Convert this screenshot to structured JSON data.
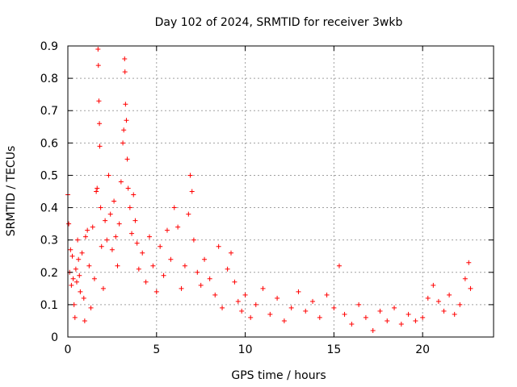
{
  "chart_data": {
    "type": "scatter",
    "title": "Day 102 of 2024, SRMTID for receiver 3wkb",
    "xlabel": "GPS time / hours",
    "ylabel": "SRMTID / TECUs",
    "xlim": [
      0,
      24
    ],
    "ylim": [
      0,
      0.9
    ],
    "xticks": [
      0,
      5,
      10,
      15,
      20
    ],
    "xtick_labels": [
      "0",
      "5",
      "10",
      "15",
      "20"
    ],
    "yticks": [
      0,
      0.1,
      0.2,
      0.3,
      0.4,
      0.5,
      0.6,
      0.7,
      0.8,
      0.9
    ],
    "ytick_labels": [
      "0",
      "0.1",
      "0.2",
      "0.3",
      "0.4",
      "0.5",
      "0.6",
      "0.7",
      "0.8",
      "0.9"
    ],
    "grid": true,
    "marker": "+",
    "color": "#ff0000",
    "series": [
      {
        "name": "SRMTID",
        "points": [
          [
            0.0,
            0.44
          ],
          [
            0.05,
            0.35
          ],
          [
            0.1,
            0.2
          ],
          [
            0.15,
            0.27
          ],
          [
            0.2,
            0.16
          ],
          [
            0.25,
            0.25
          ],
          [
            0.3,
            0.18
          ],
          [
            0.35,
            0.1
          ],
          [
            0.4,
            0.06
          ],
          [
            0.45,
            0.21
          ],
          [
            0.5,
            0.17
          ],
          [
            0.55,
            0.3
          ],
          [
            0.6,
            0.24
          ],
          [
            0.65,
            0.19
          ],
          [
            0.7,
            0.14
          ],
          [
            0.8,
            0.26
          ],
          [
            0.9,
            0.12
          ],
          [
            0.95,
            0.05
          ],
          [
            1.0,
            0.31
          ],
          [
            1.1,
            0.33
          ],
          [
            1.2,
            0.22
          ],
          [
            1.3,
            0.09
          ],
          [
            1.4,
            0.34
          ],
          [
            1.5,
            0.18
          ],
          [
            1.6,
            0.45
          ],
          [
            1.65,
            0.46
          ],
          [
            1.7,
            0.89
          ],
          [
            1.72,
            0.84
          ],
          [
            1.75,
            0.73
          ],
          [
            1.78,
            0.66
          ],
          [
            1.8,
            0.59
          ],
          [
            1.85,
            0.4
          ],
          [
            1.9,
            0.28
          ],
          [
            2.0,
            0.15
          ],
          [
            2.1,
            0.36
          ],
          [
            2.2,
            0.3
          ],
          [
            2.3,
            0.5
          ],
          [
            2.4,
            0.38
          ],
          [
            2.5,
            0.27
          ],
          [
            2.6,
            0.42
          ],
          [
            2.7,
            0.31
          ],
          [
            2.8,
            0.22
          ],
          [
            2.9,
            0.35
          ],
          [
            3.0,
            0.48
          ],
          [
            3.1,
            0.6
          ],
          [
            3.15,
            0.64
          ],
          [
            3.2,
            0.86
          ],
          [
            3.22,
            0.82
          ],
          [
            3.25,
            0.72
          ],
          [
            3.3,
            0.67
          ],
          [
            3.35,
            0.55
          ],
          [
            3.4,
            0.46
          ],
          [
            3.5,
            0.4
          ],
          [
            3.6,
            0.32
          ],
          [
            3.7,
            0.44
          ],
          [
            3.8,
            0.36
          ],
          [
            3.9,
            0.29
          ],
          [
            4.0,
            0.21
          ],
          [
            4.2,
            0.26
          ],
          [
            4.4,
            0.17
          ],
          [
            4.6,
            0.31
          ],
          [
            4.8,
            0.22
          ],
          [
            5.0,
            0.14
          ],
          [
            5.2,
            0.28
          ],
          [
            5.4,
            0.19
          ],
          [
            5.6,
            0.33
          ],
          [
            5.8,
            0.24
          ],
          [
            6.0,
            0.4
          ],
          [
            6.2,
            0.34
          ],
          [
            6.4,
            0.15
          ],
          [
            6.6,
            0.22
          ],
          [
            6.8,
            0.38
          ],
          [
            6.9,
            0.5
          ],
          [
            7.0,
            0.45
          ],
          [
            7.1,
            0.3
          ],
          [
            7.3,
            0.2
          ],
          [
            7.5,
            0.16
          ],
          [
            7.7,
            0.24
          ],
          [
            8.0,
            0.18
          ],
          [
            8.3,
            0.13
          ],
          [
            8.5,
            0.28
          ],
          [
            8.7,
            0.09
          ],
          [
            9.0,
            0.21
          ],
          [
            9.2,
            0.26
          ],
          [
            9.4,
            0.17
          ],
          [
            9.6,
            0.11
          ],
          [
            9.8,
            0.08
          ],
          [
            10.0,
            0.13
          ],
          [
            10.3,
            0.06
          ],
          [
            10.6,
            0.1
          ],
          [
            11.0,
            0.15
          ],
          [
            11.4,
            0.07
          ],
          [
            11.8,
            0.12
          ],
          [
            12.2,
            0.05
          ],
          [
            12.6,
            0.09
          ],
          [
            13.0,
            0.14
          ],
          [
            13.4,
            0.08
          ],
          [
            13.8,
            0.11
          ],
          [
            14.2,
            0.06
          ],
          [
            14.6,
            0.13
          ],
          [
            15.0,
            0.09
          ],
          [
            15.3,
            0.22
          ],
          [
            15.6,
            0.07
          ],
          [
            16.0,
            0.04
          ],
          [
            16.4,
            0.1
          ],
          [
            16.8,
            0.06
          ],
          [
            17.2,
            0.02
          ],
          [
            17.6,
            0.08
          ],
          [
            18.0,
            0.05
          ],
          [
            18.4,
            0.09
          ],
          [
            18.8,
            0.04
          ],
          [
            19.2,
            0.07
          ],
          [
            19.6,
            0.05
          ],
          [
            20.0,
            0.06
          ],
          [
            20.3,
            0.12
          ],
          [
            20.6,
            0.16
          ],
          [
            20.9,
            0.11
          ],
          [
            21.2,
            0.08
          ],
          [
            21.5,
            0.13
          ],
          [
            21.8,
            0.07
          ],
          [
            22.1,
            0.1
          ],
          [
            22.4,
            0.18
          ],
          [
            22.6,
            0.23
          ],
          [
            22.7,
            0.15
          ]
        ]
      }
    ]
  }
}
